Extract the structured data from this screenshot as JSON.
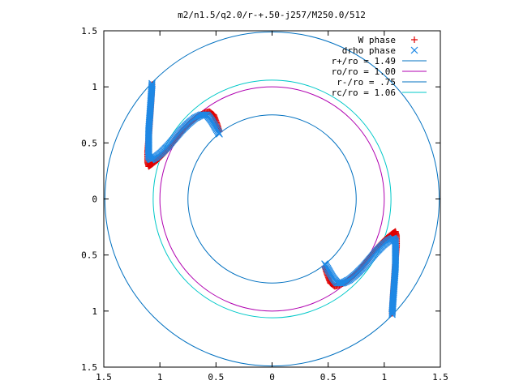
{
  "chart_data": {
    "type": "scatter",
    "title": "m2/n1.5/q2.0/r-+.50-j257/M250.0/512",
    "xlabel": "",
    "ylabel": "",
    "xlim": [
      -1.5,
      1.5
    ],
    "ylim": [
      -1.5,
      1.5
    ],
    "grid": false,
    "legend_position": "top-right",
    "x_ticks": [
      {
        "v": -1.5,
        "label": "1.5"
      },
      {
        "v": -1.0,
        "label": "1"
      },
      {
        "v": -0.5,
        "label": "0.5"
      },
      {
        "v": 0.0,
        "label": "0"
      },
      {
        "v": 0.5,
        "label": "0.5"
      },
      {
        "v": 1.0,
        "label": "1"
      },
      {
        "v": 1.5,
        "label": "1.5"
      }
    ],
    "y_ticks": [
      {
        "v": 1.5,
        "label": "1.5"
      },
      {
        "v": 1.0,
        "label": "1"
      },
      {
        "v": 0.5,
        "label": "0.5"
      },
      {
        "v": 0.0,
        "label": "0"
      },
      {
        "v": -0.5,
        "label": "0.5"
      },
      {
        "v": -1.0,
        "label": "1"
      },
      {
        "v": -1.5,
        "label": "1.5"
      }
    ],
    "circles": [
      {
        "name": "r+/ro = 1.49",
        "radius": 1.49,
        "color": "#0070c0"
      },
      {
        "name": "ro/ro = 1.00",
        "radius": 1.0,
        "color": "#b000b0"
      },
      {
        "name": "r-/ro = .75",
        "radius": 0.75,
        "color": "#0070c0"
      },
      {
        "name": "rc/ro = 1.06",
        "radius": 1.06,
        "color": "#00c8c8"
      }
    ],
    "series": [
      {
        "name": "W phase",
        "marker": "+",
        "color": "#e00000",
        "arms": [
          [
            [
              -1.07,
              1.02
            ],
            [
              -1.08,
              0.85
            ],
            [
              -1.09,
              0.7
            ],
            [
              -1.1,
              0.55
            ],
            [
              -1.11,
              0.42
            ],
            [
              -1.11,
              0.33
            ],
            [
              -1.1,
              0.29
            ],
            [
              -1.07,
              0.31
            ],
            [
              -1.02,
              0.35
            ],
            [
              -0.96,
              0.41
            ],
            [
              -0.9,
              0.48
            ],
            [
              -0.84,
              0.56
            ],
            [
              -0.78,
              0.63
            ],
            [
              -0.72,
              0.69
            ],
            [
              -0.66,
              0.74
            ],
            [
              -0.6,
              0.77
            ],
            [
              -0.56,
              0.78
            ],
            [
              -0.52,
              0.75
            ],
            [
              -0.49,
              0.67
            ],
            [
              -0.47,
              0.6
            ]
          ],
          [
            [
              1.07,
              -1.02
            ],
            [
              1.08,
              -0.85
            ],
            [
              1.09,
              -0.7
            ],
            [
              1.1,
              -0.55
            ],
            [
              1.11,
              -0.42
            ],
            [
              1.11,
              -0.33
            ],
            [
              1.1,
              -0.29
            ],
            [
              1.07,
              -0.31
            ],
            [
              1.02,
              -0.35
            ],
            [
              0.96,
              -0.41
            ],
            [
              0.9,
              -0.48
            ],
            [
              0.84,
              -0.56
            ],
            [
              0.78,
              -0.63
            ],
            [
              0.72,
              -0.69
            ],
            [
              0.66,
              -0.74
            ],
            [
              0.6,
              -0.77
            ],
            [
              0.56,
              -0.78
            ],
            [
              0.52,
              -0.75
            ],
            [
              0.49,
              -0.67
            ],
            [
              0.47,
              -0.6
            ]
          ]
        ]
      },
      {
        "name": "drho phase",
        "marker": "x",
        "color": "#1e88e5",
        "arms": [
          [
            [
              -1.07,
              1.03
            ],
            [
              -1.08,
              0.88
            ],
            [
              -1.09,
              0.74
            ],
            [
              -1.1,
              0.6
            ],
            [
              -1.1,
              0.47
            ],
            [
              -1.1,
              0.38
            ],
            [
              -1.08,
              0.35
            ],
            [
              -1.04,
              0.37
            ],
            [
              -0.99,
              0.41
            ],
            [
              -0.93,
              0.47
            ],
            [
              -0.87,
              0.54
            ],
            [
              -0.81,
              0.61
            ],
            [
              -0.75,
              0.67
            ],
            [
              -0.69,
              0.72
            ],
            [
              -0.63,
              0.75
            ],
            [
              -0.58,
              0.75
            ],
            [
              -0.54,
              0.7
            ],
            [
              -0.5,
              0.63
            ],
            [
              -0.47,
              0.58
            ]
          ],
          [
            [
              1.07,
              -1.03
            ],
            [
              1.08,
              -0.88
            ],
            [
              1.09,
              -0.74
            ],
            [
              1.1,
              -0.6
            ],
            [
              1.1,
              -0.47
            ],
            [
              1.1,
              -0.38
            ],
            [
              1.08,
              -0.35
            ],
            [
              1.04,
              -0.37
            ],
            [
              0.99,
              -0.41
            ],
            [
              0.93,
              -0.47
            ],
            [
              0.87,
              -0.54
            ],
            [
              0.81,
              -0.61
            ],
            [
              0.75,
              -0.67
            ],
            [
              0.69,
              -0.72
            ],
            [
              0.63,
              -0.75
            ],
            [
              0.58,
              -0.75
            ],
            [
              0.54,
              -0.7
            ],
            [
              0.5,
              -0.63
            ],
            [
              0.47,
              -0.58
            ]
          ]
        ]
      }
    ]
  }
}
